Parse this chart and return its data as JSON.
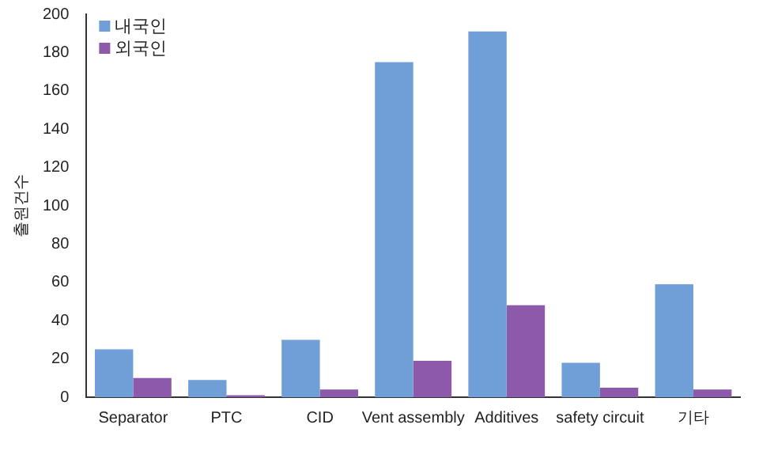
{
  "chart_data": {
    "type": "bar",
    "ylabel": "출원건수",
    "categories": [
      "Separator",
      "PTC",
      "CID",
      "Vent assembly",
      "Additives",
      "safety circuit",
      "기타"
    ],
    "series": [
      {
        "name": "내국인",
        "color": "#6f9fd6",
        "values": [
          25,
          9,
          30,
          175,
          191,
          18,
          59
        ]
      },
      {
        "name": "외국인",
        "color": "#8d5aab",
        "values": [
          10,
          1,
          4,
          19,
          48,
          5,
          4
        ]
      }
    ],
    "ylim": [
      0,
      200
    ],
    "yticks": [
      0,
      20,
      40,
      60,
      80,
      100,
      120,
      140,
      160,
      180,
      200
    ],
    "grid": false,
    "legend": "top left"
  }
}
